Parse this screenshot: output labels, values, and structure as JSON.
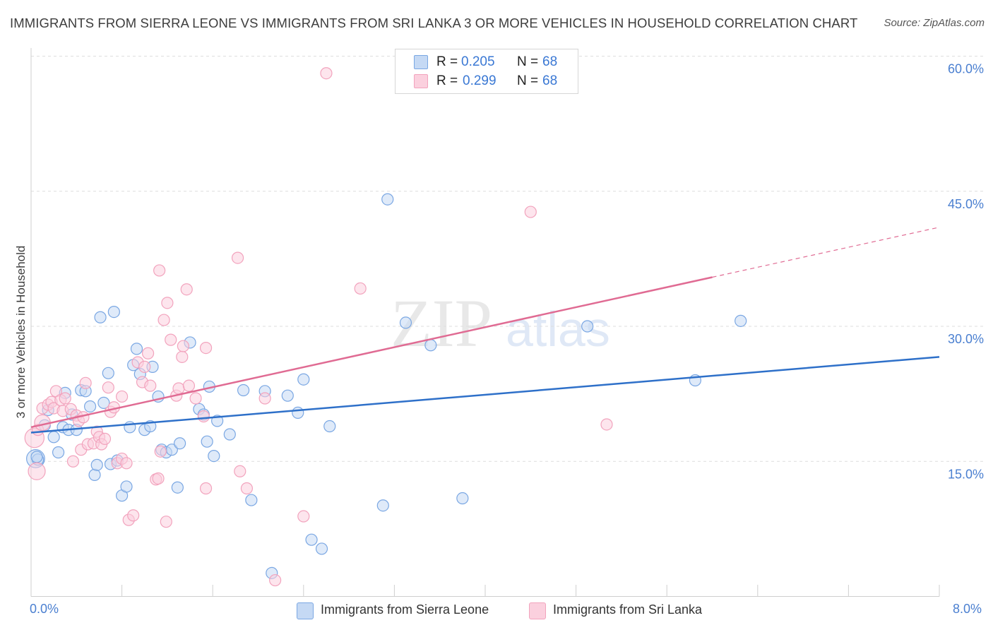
{
  "title": "IMMIGRANTS FROM SIERRA LEONE VS IMMIGRANTS FROM SRI LANKA 3 OR MORE VEHICLES IN HOUSEHOLD CORRELATION CHART",
  "source": "Source: ZipAtlas.com",
  "watermark": {
    "zip": "ZIP",
    "atlas": "atlas"
  },
  "legend": {
    "r_label": "R =",
    "n_label": "N =",
    "series": [
      {
        "r": "0.205",
        "n": "68"
      },
      {
        "r": "0.299",
        "n": "68"
      }
    ]
  },
  "chart_data": {
    "type": "scatter",
    "title": "IMMIGRANTS FROM SIERRA LEONE VS IMMIGRANTS FROM SRI LANKA 3 OR MORE VEHICLES IN HOUSEHOLD CORRELATION CHART",
    "xlabel": "",
    "ylabel": "3 or more Vehicles in Household",
    "xlim": [
      0,
      8
    ],
    "ylim": [
      0,
      60
    ],
    "x_tick_labels": [
      "0.0%",
      "8.0%"
    ],
    "y_ticks": [
      15,
      30,
      45,
      60
    ],
    "y_tick_labels": [
      "15.0%",
      "30.0%",
      "45.0%",
      "60.0%"
    ],
    "grid": "horizontal-dashed",
    "legend_position": "top-center",
    "series": [
      {
        "name": "Immigrants from Sierra Leone",
        "color": "#7aa7e3",
        "line_color": "#2e70c9",
        "r": 0.205,
        "n": 68,
        "trend": {
          "x0": 0,
          "y0": 18.2,
          "x1": 8,
          "y1": 26.6,
          "dash_from": null
        },
        "points": [
          [
            0.04,
            15.3,
            1.6
          ],
          [
            0.06,
            15.2,
            1
          ],
          [
            0.05,
            15.5,
            1
          ],
          [
            0.12,
            19.0,
            1
          ],
          [
            0.15,
            20.7,
            1
          ],
          [
            0.2,
            17.7,
            1
          ],
          [
            0.24,
            16.0,
            1
          ],
          [
            0.28,
            18.8,
            1
          ],
          [
            0.3,
            22.6,
            1
          ],
          [
            0.33,
            18.5,
            1
          ],
          [
            0.36,
            20.2,
            1
          ],
          [
            0.4,
            18.5,
            1
          ],
          [
            0.44,
            22.9,
            1
          ],
          [
            0.48,
            22.8,
            1
          ],
          [
            0.52,
            21.1,
            1
          ],
          [
            0.56,
            13.5,
            1
          ],
          [
            0.58,
            14.6,
            1
          ],
          [
            0.61,
            31.0,
            1
          ],
          [
            0.64,
            21.5,
            1
          ],
          [
            0.68,
            24.8,
            1
          ],
          [
            0.7,
            14.7,
            1
          ],
          [
            0.73,
            31.6,
            1
          ],
          [
            0.76,
            15.1,
            1
          ],
          [
            0.8,
            11.2,
            1
          ],
          [
            0.84,
            12.2,
            1
          ],
          [
            0.87,
            18.8,
            1
          ],
          [
            0.9,
            25.7,
            1
          ],
          [
            0.93,
            27.5,
            1
          ],
          [
            0.96,
            24.7,
            1
          ],
          [
            1.0,
            18.5,
            1
          ],
          [
            1.05,
            18.9,
            1
          ],
          [
            1.07,
            25.5,
            1
          ],
          [
            1.12,
            22.2,
            1
          ],
          [
            1.15,
            16.3,
            1
          ],
          [
            1.19,
            16.0,
            1
          ],
          [
            1.24,
            16.3,
            1
          ],
          [
            1.29,
            12.1,
            1
          ],
          [
            1.31,
            17.0,
            1
          ],
          [
            1.4,
            28.2,
            1
          ],
          [
            1.48,
            20.8,
            1
          ],
          [
            1.52,
            20.2,
            1
          ],
          [
            1.55,
            17.2,
            1
          ],
          [
            1.57,
            23.3,
            1
          ],
          [
            1.61,
            15.6,
            1
          ],
          [
            1.64,
            19.5,
            1
          ],
          [
            1.75,
            18.0,
            1
          ],
          [
            1.87,
            22.9,
            1
          ],
          [
            1.94,
            10.7,
            1
          ],
          [
            2.06,
            22.8,
            1
          ],
          [
            2.12,
            2.6,
            1
          ],
          [
            2.26,
            22.3,
            1
          ],
          [
            2.35,
            20.4,
            1
          ],
          [
            2.4,
            24.1,
            1
          ],
          [
            2.47,
            6.3,
            1
          ],
          [
            2.56,
            5.3,
            1
          ],
          [
            2.63,
            18.9,
            1
          ],
          [
            3.1,
            10.1,
            1
          ],
          [
            3.14,
            44.1,
            1
          ],
          [
            3.3,
            30.4,
            1
          ],
          [
            3.52,
            27.9,
            1
          ],
          [
            3.8,
            10.9,
            1
          ],
          [
            4.9,
            30.0,
            1
          ],
          [
            5.85,
            24.0,
            1
          ],
          [
            6.25,
            30.6,
            1
          ]
        ]
      },
      {
        "name": "Immigrants from Sri Lanka",
        "color": "#f2a3bd",
        "line_color": "#e06b93",
        "r": 0.299,
        "n": 68,
        "trend": {
          "x0": 0,
          "y0": 18.8,
          "x1": 8,
          "y1": 41.0,
          "dash_from": 6.0
        },
        "points": [
          [
            0.03,
            17.6,
            1.7
          ],
          [
            0.05,
            13.9,
            1.5
          ],
          [
            0.06,
            18.5,
            1
          ],
          [
            0.1,
            19.3,
            1.4
          ],
          [
            0.1,
            20.9,
            1
          ],
          [
            0.15,
            21.3,
            1
          ],
          [
            0.18,
            21.6,
            1
          ],
          [
            0.2,
            20.9,
            1
          ],
          [
            0.22,
            22.8,
            1
          ],
          [
            0.26,
            21.8,
            1
          ],
          [
            0.28,
            20.6,
            1
          ],
          [
            0.3,
            22.0,
            1
          ],
          [
            0.35,
            20.8,
            1
          ],
          [
            0.37,
            15.0,
            1
          ],
          [
            0.4,
            20.1,
            1
          ],
          [
            0.42,
            19.5,
            1
          ],
          [
            0.44,
            16.3,
            1
          ],
          [
            0.46,
            19.9,
            1
          ],
          [
            0.48,
            23.7,
            1
          ],
          [
            0.5,
            16.9,
            1
          ],
          [
            0.55,
            17.0,
            1
          ],
          [
            0.58,
            18.3,
            1
          ],
          [
            0.6,
            17.7,
            1
          ],
          [
            0.62,
            16.9,
            1
          ],
          [
            0.65,
            17.5,
            1
          ],
          [
            0.68,
            23.2,
            1
          ],
          [
            0.7,
            20.5,
            1
          ],
          [
            0.73,
            21.0,
            1
          ],
          [
            0.76,
            14.8,
            1
          ],
          [
            0.8,
            22.2,
            1
          ],
          [
            0.8,
            15.3,
            1
          ],
          [
            0.84,
            14.8,
            1
          ],
          [
            0.86,
            8.5,
            1
          ],
          [
            0.9,
            9.0,
            1
          ],
          [
            0.94,
            26.0,
            1
          ],
          [
            0.98,
            23.8,
            1
          ],
          [
            1.0,
            25.5,
            1
          ],
          [
            1.03,
            27.0,
            1
          ],
          [
            1.05,
            23.4,
            1
          ],
          [
            1.1,
            13.0,
            1
          ],
          [
            1.12,
            13.1,
            1
          ],
          [
            1.13,
            36.2,
            1
          ],
          [
            1.14,
            16.1,
            1
          ],
          [
            1.17,
            30.7,
            1
          ],
          [
            1.19,
            8.3,
            1
          ],
          [
            1.2,
            32.6,
            1
          ],
          [
            1.23,
            28.5,
            1
          ],
          [
            1.28,
            22.3,
            1
          ],
          [
            1.3,
            23.1,
            1
          ],
          [
            1.33,
            26.6,
            1
          ],
          [
            1.34,
            27.8,
            1
          ],
          [
            1.37,
            34.1,
            1
          ],
          [
            1.39,
            23.4,
            1
          ],
          [
            1.45,
            22.0,
            1
          ],
          [
            1.52,
            20.0,
            1
          ],
          [
            1.54,
            27.6,
            1
          ],
          [
            1.54,
            12.0,
            1
          ],
          [
            1.82,
            37.6,
            1
          ],
          [
            1.84,
            13.9,
            1
          ],
          [
            1.9,
            12.0,
            1
          ],
          [
            2.06,
            22.0,
            1
          ],
          [
            2.15,
            1.8,
            1
          ],
          [
            2.4,
            8.9,
            1
          ],
          [
            2.6,
            58.1,
            1
          ],
          [
            2.9,
            34.2,
            1
          ],
          [
            4.4,
            42.7,
            1
          ],
          [
            5.07,
            19.1,
            1
          ]
        ]
      }
    ]
  }
}
